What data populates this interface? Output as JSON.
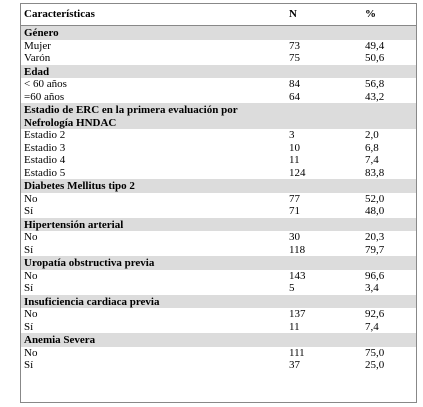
{
  "header": [
    "Características",
    "N",
    "%"
  ],
  "sections": [
    {
      "title": "Género",
      "rows": [
        [
          "Mujer",
          "73",
          "49,4"
        ],
        [
          "Varón",
          "75",
          "50,6"
        ]
      ]
    },
    {
      "title": "Edad",
      "rows": [
        [
          "< 60 años",
          "84",
          "56,8"
        ],
        [
          "=60 años",
          "64",
          "43,2"
        ]
      ]
    },
    {
      "title": "Estadio de ERC en la primera evaluación por Nefrología HNDAC",
      "rows": [
        [
          "Estadio 2",
          "3",
          "2,0"
        ],
        [
          "Estadio 3",
          "10",
          "6,8"
        ],
        [
          "Estadio 4",
          "11",
          "7,4"
        ],
        [
          "Estadio 5",
          "124",
          "83,8"
        ]
      ]
    },
    {
      "title": "Diabetes Mellitus tipo 2",
      "rows": [
        [
          "No",
          "77",
          "52,0"
        ],
        [
          "Sí",
          "71",
          "48,0"
        ]
      ]
    },
    {
      "title": "Hipertensión arterial",
      "rows": [
        [
          "No",
          "30",
          "20,3"
        ],
        [
          "Sí",
          "118",
          "79,7"
        ]
      ]
    },
    {
      "title": "Uropatía obstructiva previa",
      "rows": [
        [
          "No",
          "143",
          "96,6"
        ],
        [
          "Sí",
          "5",
          "3,4"
        ]
      ]
    },
    {
      "title": "Insuficiencia cardiaca previa",
      "rows": [
        [
          "No",
          "137",
          "92,6"
        ],
        [
          "Sí",
          "11",
          "7,4"
        ]
      ]
    },
    {
      "title": "Anemia Severa",
      "rows": [
        [
          "No",
          "111",
          "75,0"
        ],
        [
          "Sí",
          "37",
          "25,0"
        ]
      ]
    }
  ]
}
